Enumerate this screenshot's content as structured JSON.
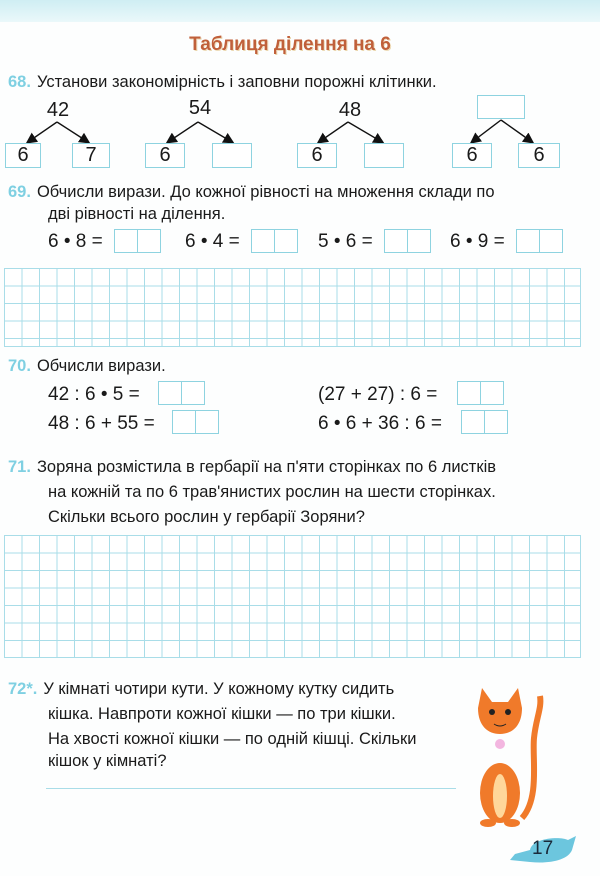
{
  "title": "Таблиця ділення на 6",
  "ex68": {
    "num": "68.",
    "text": "Установи закономірність і заповни порожні клітинки.",
    "trees": [
      {
        "top": "42",
        "left": "6",
        "right": "7"
      },
      {
        "top": "54",
        "left": "6",
        "right": ""
      },
      {
        "top": "48",
        "left": "6",
        "right": ""
      },
      {
        "top": "",
        "left": "6",
        "right": "6"
      }
    ]
  },
  "ex69": {
    "num": "69.",
    "line1": "Обчисли вирази. До кожної рівності на множення склади по",
    "line2": "дві рівності на ділення.",
    "exprs": [
      "6 • 8 =",
      "6 • 4 =",
      "5 • 6 =",
      "6 • 9 ="
    ]
  },
  "ex70": {
    "num": "70.",
    "text": "Обчисли вирази.",
    "exprs": [
      "42 : 6 • 5 =",
      "(27 + 27) : 6 =",
      "48 : 6 + 55 =",
      "6 • 6 + 36 : 6 ="
    ]
  },
  "ex71": {
    "num": "71.",
    "line1": "Зоряна розмістила в гербарії на п'яти сторінках по 6 листків",
    "line2": "на кожній та по 6 трав'янистих рослин на шести сторінках.",
    "line3": "Скільки всього рослин у гербарії Зоряни?"
  },
  "ex72": {
    "num": "72*.",
    "line1": "У кімнаті чотири кути. У кожному кутку сидить",
    "line2": "кішка. Навпроти кожної кішки — по три кішки.",
    "line3": "На хвості кожної кішки — по одній кішці. Скільки",
    "line4": "кішок у кімнаті?"
  },
  "page_number": "17",
  "colors": {
    "title": "#c0603a",
    "accent": "#7fd0e2",
    "grid": "#a9dde8",
    "cat": "#f07a2a"
  }
}
